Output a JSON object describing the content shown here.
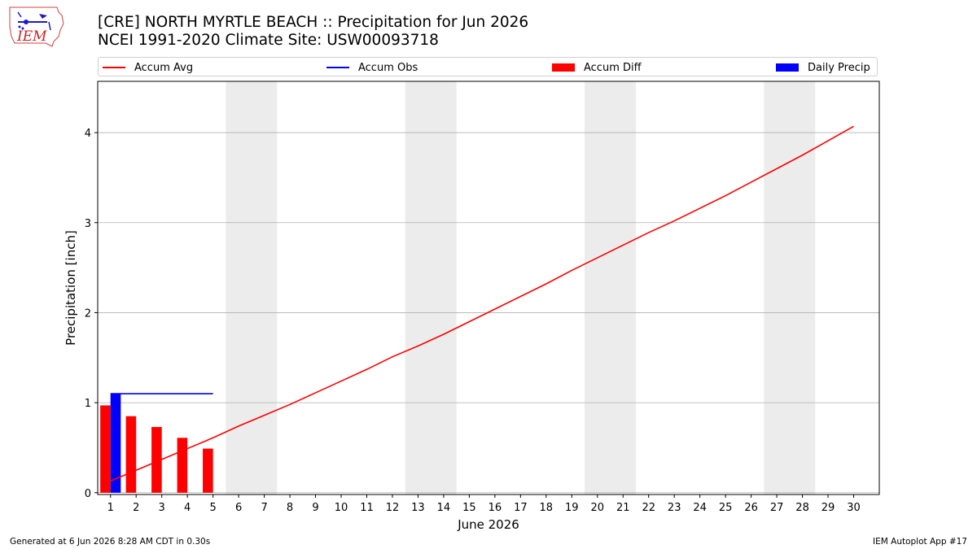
{
  "header": {
    "title_line1": "[CRE] NORTH MYRTLE BEACH :: Precipitation for Jun 2026",
    "title_line2": "NCEI 1991-2020 Climate Site: USW00093718"
  },
  "logo": {
    "text": "IEM",
    "icon": "iem-iowa-map-logo"
  },
  "legend": [
    {
      "label": "Accum Avg",
      "color": "#ff0000",
      "kind": "line"
    },
    {
      "label": "Accum Obs",
      "color": "#0000ff",
      "kind": "line"
    },
    {
      "label": "Accum Diff",
      "color": "#ff0000",
      "kind": "box"
    },
    {
      "label": "Daily Precip",
      "color": "#0000ff",
      "kind": "box"
    }
  ],
  "footer": {
    "left": "Generated at 6 Jun 2026 8:28 AM CDT in 0.30s",
    "right": "IEM Autoplot App #17"
  },
  "chart_data": {
    "type": "bar",
    "xlabel": "June 2026",
    "ylabel": "Precipitation [inch]",
    "xlim": [
      0.5,
      31.0
    ],
    "ylim": [
      -0.02,
      4.57
    ],
    "yticks": [
      0,
      1,
      2,
      3,
      4
    ],
    "xticks": [
      1,
      2,
      3,
      4,
      5,
      6,
      7,
      8,
      9,
      10,
      11,
      12,
      13,
      14,
      15,
      16,
      17,
      18,
      19,
      20,
      21,
      22,
      23,
      24,
      25,
      26,
      27,
      28,
      29,
      30
    ],
    "grid": "horizontal",
    "weekend_shading": [
      [
        6,
        7
      ],
      [
        13,
        14
      ],
      [
        20,
        21
      ],
      [
        27,
        28
      ]
    ],
    "weekend_color": "#ececec",
    "series": [
      {
        "name": "Accum Avg",
        "kind": "line",
        "color": "#ff0000",
        "x": [
          1,
          2,
          3,
          4,
          5,
          6,
          7,
          8,
          9,
          10,
          11,
          12,
          13,
          14,
          15,
          16,
          17,
          18,
          19,
          20,
          21,
          22,
          23,
          24,
          25,
          26,
          27,
          28,
          29,
          30
        ],
        "values": [
          0.13,
          0.25,
          0.37,
          0.49,
          0.61,
          0.74,
          0.86,
          0.98,
          1.11,
          1.24,
          1.37,
          1.51,
          1.63,
          1.76,
          1.9,
          2.04,
          2.18,
          2.32,
          2.47,
          2.61,
          2.75,
          2.89,
          3.02,
          3.16,
          3.3,
          3.45,
          3.6,
          3.75,
          3.91,
          4.07
        ]
      },
      {
        "name": "Accum Obs",
        "kind": "line",
        "color": "#0000ff",
        "x": [
          1,
          2,
          3,
          4,
          5
        ],
        "values": [
          1.1,
          1.1,
          1.1,
          1.1,
          1.1
        ]
      },
      {
        "name": "Accum Diff",
        "kind": "bar",
        "color": "#ff0000",
        "x": [
          1,
          2,
          3,
          4,
          5
        ],
        "values": [
          0.97,
          0.85,
          0.73,
          0.61,
          0.49
        ]
      },
      {
        "name": "Daily Precip",
        "kind": "bar",
        "color": "#0000ff",
        "x": [
          1,
          2,
          3,
          4,
          5
        ],
        "values": [
          1.1,
          0,
          0,
          0,
          0
        ]
      }
    ]
  }
}
